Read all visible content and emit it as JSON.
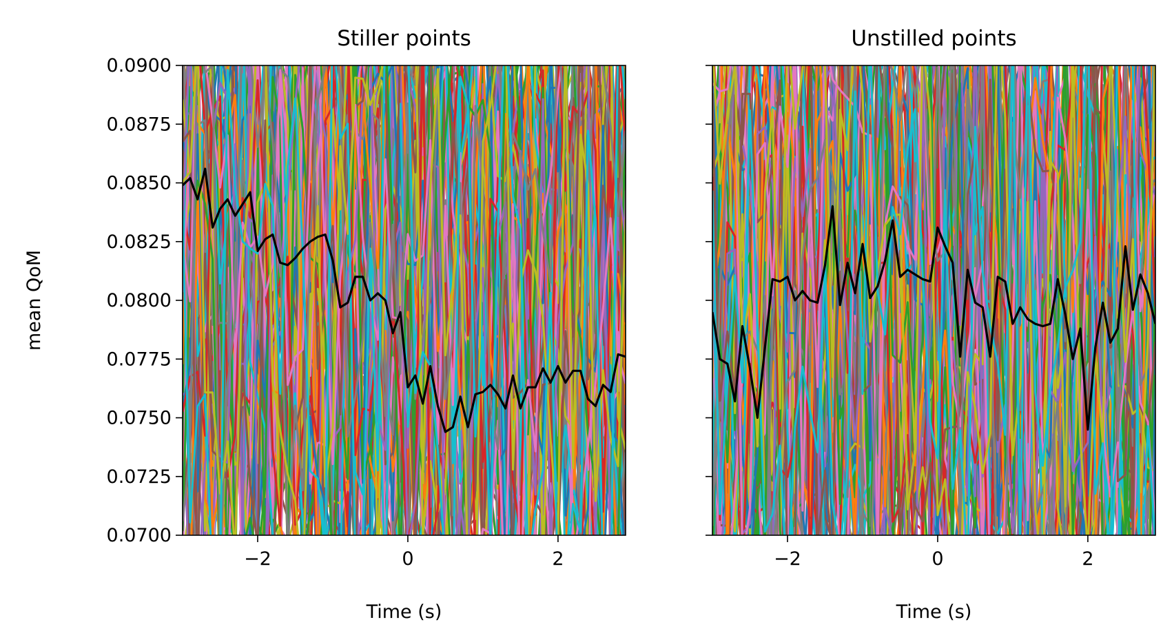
{
  "palette": [
    "#1f77b4",
    "#ff7f0e",
    "#2ca02c",
    "#d62728",
    "#9467bd",
    "#8c564b",
    "#e377c2",
    "#7f7f7f",
    "#bcbd22",
    "#17becf"
  ],
  "mean_color": "#000000",
  "chart_data": [
    {
      "type": "line",
      "title": "Stiller points",
      "xlabel": "Time (s)",
      "ylabel": "mean QoM",
      "xlim": [
        -3.0,
        2.9
      ],
      "ylim": [
        0.07,
        0.09
      ],
      "xticks": [
        -2,
        0,
        2
      ],
      "xtick_labels": [
        "−2",
        "0",
        "2"
      ],
      "yticks": [
        0.07,
        0.0725,
        0.075,
        0.0775,
        0.08,
        0.0825,
        0.085,
        0.0875,
        0.09
      ],
      "ytick_labels": [
        "0.0700",
        "0.0725",
        "0.0750",
        "0.0775",
        "0.0800",
        "0.0825",
        "0.0850",
        "0.0875",
        "0.0900"
      ],
      "background_traces": "many individual traces in the default colour cycle, fluctuating across the full 0.0700–0.0900 range",
      "series": [
        {
          "x": [
            -3.0,
            -2.9,
            -2.8,
            -2.7,
            -2.6,
            -2.5,
            -2.4,
            -2.3,
            -2.2,
            -2.1,
            -2.0,
            -1.9,
            -1.8,
            -1.7,
            -1.6,
            -1.5,
            -1.4,
            -1.3,
            -1.2,
            -1.1,
            -1.0,
            -0.9,
            -0.8,
            -0.7,
            -0.6,
            -0.5,
            -0.4,
            -0.3,
            -0.2,
            -0.1,
            0.0,
            0.1,
            0.2,
            0.3,
            0.4,
            0.5,
            0.6,
            0.7,
            0.8,
            0.9,
            1.0,
            1.1,
            1.2,
            1.3,
            1.4,
            1.5,
            1.6,
            1.7,
            1.8,
            1.9,
            2.0,
            2.1,
            2.2,
            2.3,
            2.4,
            2.5,
            2.6,
            2.7,
            2.8,
            2.9
          ],
          "values": [
            0.0849,
            0.0852,
            0.0843,
            0.0856,
            0.0831,
            0.0839,
            0.0843,
            0.0836,
            0.0841,
            0.0846,
            0.0821,
            0.0826,
            0.0828,
            0.0816,
            0.0815,
            0.0818,
            0.0822,
            0.0825,
            0.0827,
            0.0828,
            0.0817,
            0.0797,
            0.0799,
            0.081,
            0.081,
            0.08,
            0.0803,
            0.08,
            0.0786,
            0.0795,
            0.0763,
            0.0768,
            0.0756,
            0.0772,
            0.0755,
            0.0744,
            0.0746,
            0.0759,
            0.0746,
            0.076,
            0.0761,
            0.0764,
            0.076,
            0.0754,
            0.0768,
            0.0754,
            0.0763,
            0.0763,
            0.0771,
            0.0765,
            0.0772,
            0.0765,
            0.077,
            0.077,
            0.0758,
            0.0755,
            0.0764,
            0.0761,
            0.0777,
            0.0776
          ]
        }
      ]
    },
    {
      "type": "line",
      "title": "Unstilled points",
      "xlabel": "Time (s)",
      "ylabel": "",
      "xlim": [
        -3.0,
        2.9
      ],
      "ylim": [
        0.07,
        0.09
      ],
      "xticks": [
        -2,
        0,
        2
      ],
      "xtick_labels": [
        "−2",
        "0",
        "2"
      ],
      "yticks": [
        0.07,
        0.0725,
        0.075,
        0.0775,
        0.08,
        0.0825,
        0.085,
        0.0875,
        0.09
      ],
      "ytick_labels": [],
      "background_traces": "many individual traces in the default colour cycle, fluctuating across the full 0.0700–0.0900 range",
      "series": [
        {
          "x": [
            -3.0,
            -2.9,
            -2.8,
            -2.7,
            -2.6,
            -2.5,
            -2.4,
            -2.3,
            -2.2,
            -2.1,
            -2.0,
            -1.9,
            -1.8,
            -1.7,
            -1.6,
            -1.5,
            -1.4,
            -1.3,
            -1.2,
            -1.1,
            -1.0,
            -0.9,
            -0.8,
            -0.7,
            -0.6,
            -0.5,
            -0.4,
            -0.3,
            -0.2,
            -0.1,
            0.0,
            0.1,
            0.2,
            0.3,
            0.4,
            0.5,
            0.6,
            0.7,
            0.8,
            0.9,
            1.0,
            1.1,
            1.2,
            1.3,
            1.4,
            1.5,
            1.6,
            1.7,
            1.8,
            1.9,
            2.0,
            2.1,
            2.2,
            2.3,
            2.4,
            2.5,
            2.6,
            2.7,
            2.8,
            2.9
          ],
          "values": [
            0.0795,
            0.0775,
            0.0773,
            0.0757,
            0.0789,
            0.0771,
            0.075,
            0.078,
            0.0809,
            0.0808,
            0.081,
            0.08,
            0.0804,
            0.08,
            0.0799,
            0.0815,
            0.084,
            0.0798,
            0.0816,
            0.0803,
            0.0824,
            0.0801,
            0.0806,
            0.0817,
            0.0834,
            0.081,
            0.0813,
            0.0811,
            0.0809,
            0.0808,
            0.0831,
            0.0823,
            0.0816,
            0.0776,
            0.0813,
            0.0799,
            0.0797,
            0.0776,
            0.081,
            0.0808,
            0.079,
            0.0797,
            0.0792,
            0.079,
            0.0789,
            0.079,
            0.0809,
            0.0794,
            0.0775,
            0.0788,
            0.0745,
            0.078,
            0.0799,
            0.0782,
            0.0788,
            0.0823,
            0.0796,
            0.0811,
            0.0803,
            0.079
          ]
        }
      ]
    }
  ]
}
